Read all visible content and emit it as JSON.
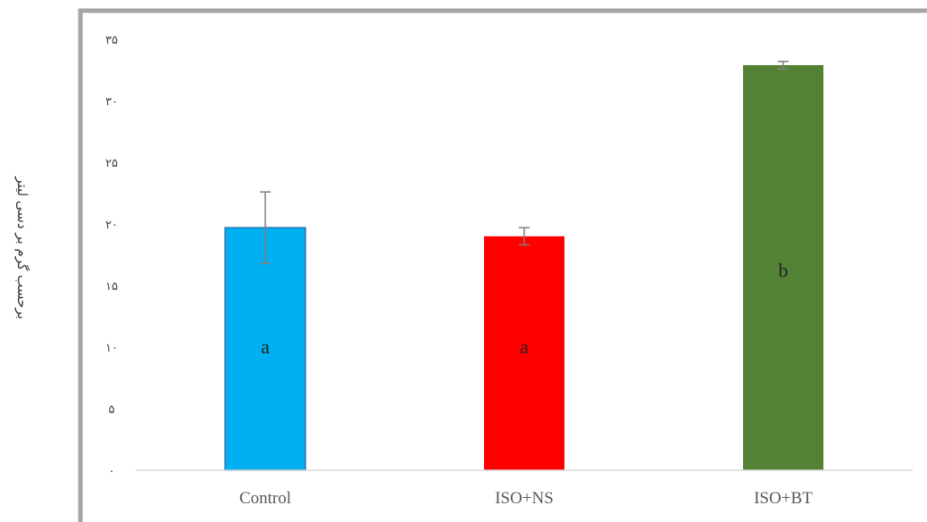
{
  "chart_data": {
    "type": "bar",
    "title": "",
    "xlabel": "",
    "ylabel": "برحسب گرم بر دسی لیتر",
    "categories": [
      "Control",
      "ISO+NS",
      "ISO+BT"
    ],
    "values": [
      19.7,
      19.0,
      32.9
    ],
    "errors": [
      2.9,
      0.7,
      0.3
    ],
    "bar_labels": [
      "a",
      "a",
      "b"
    ],
    "bar_colors": [
      "#00b0f0",
      "#ff0000",
      "#548235"
    ],
    "ylim": [
      0,
      35
    ],
    "yticks": [
      0,
      5,
      10,
      15,
      20,
      25,
      30,
      35
    ],
    "ytick_labels": [
      "۰",
      "۵",
      "۱۰",
      "۱۵",
      "۲۰",
      "۲۵",
      "۳۰",
      "۳۵"
    ],
    "grid": false,
    "legend": "none"
  }
}
